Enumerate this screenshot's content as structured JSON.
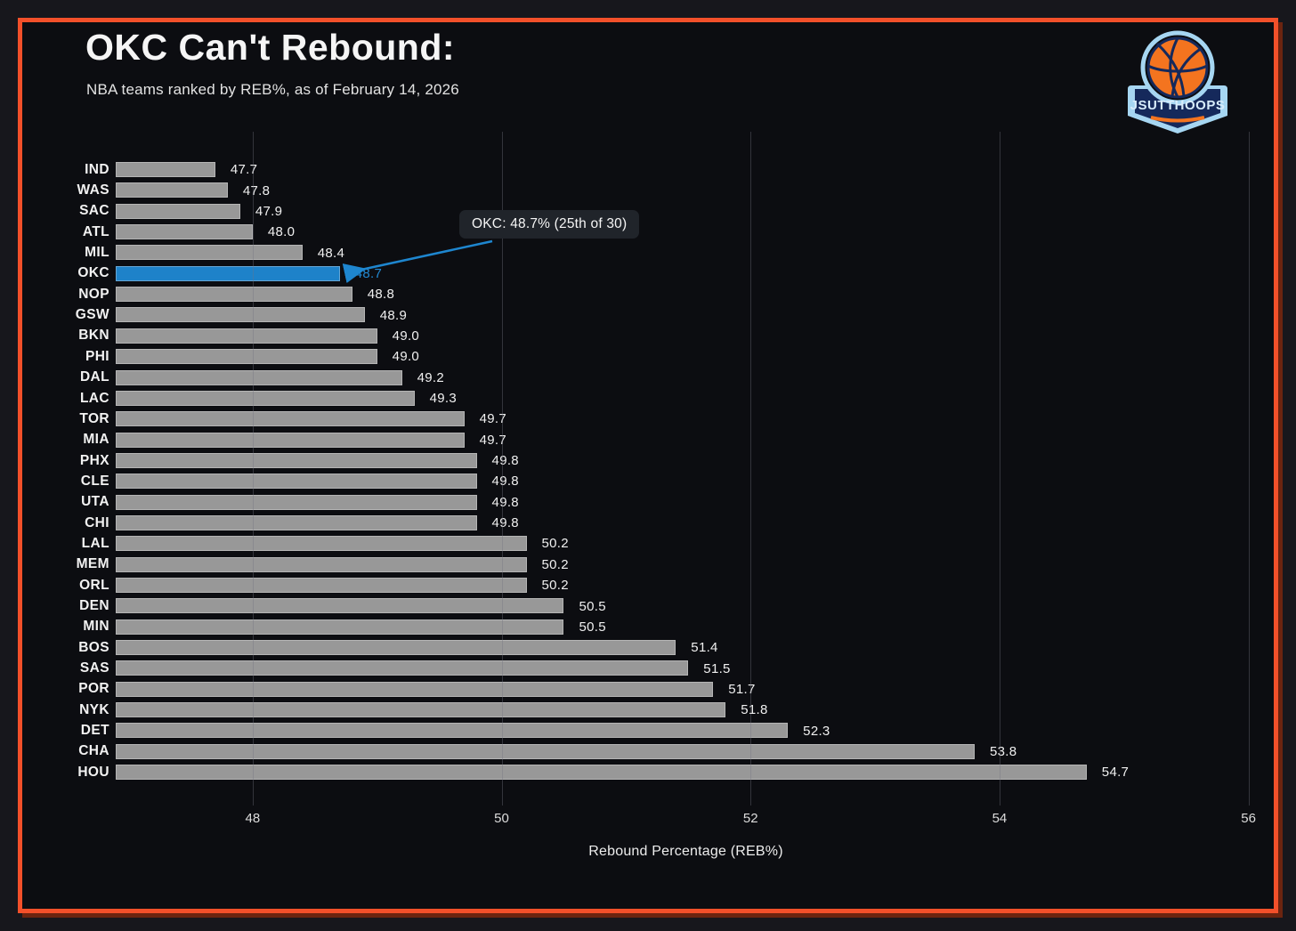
{
  "chart_data": {
    "type": "bar",
    "orientation": "horizontal",
    "title": "OKC Can't Rebound:",
    "subtitle": "NBA teams ranked by REB%, as of February 14, 2026",
    "xlabel": "Rebound Percentage (REB%)",
    "categories": [
      "IND",
      "WAS",
      "SAC",
      "ATL",
      "MIL",
      "OKC",
      "NOP",
      "GSW",
      "BKN",
      "PHI",
      "DAL",
      "LAC",
      "TOR",
      "MIA",
      "PHX",
      "CLE",
      "UTA",
      "CHI",
      "LAL",
      "MEM",
      "ORL",
      "DEN",
      "MIN",
      "BOS",
      "SAS",
      "POR",
      "NYK",
      "DET",
      "CHA",
      "HOU"
    ],
    "values": [
      47.7,
      47.8,
      47.9,
      48.0,
      48.4,
      48.7,
      48.8,
      48.9,
      49.0,
      49.0,
      49.2,
      49.3,
      49.7,
      49.7,
      49.8,
      49.8,
      49.8,
      49.8,
      50.2,
      50.2,
      50.2,
      50.5,
      50.5,
      51.4,
      51.5,
      51.7,
      51.8,
      52.3,
      53.8,
      54.7
    ],
    "highlight_team": "OKC",
    "annotation": "OKC: 48.7% (25th of 30)",
    "xticks": [
      48,
      50,
      52,
      54,
      56
    ],
    "xlim": [
      46.9,
      56.06
    ],
    "grid": true,
    "legend": false,
    "bar_color": "#989898",
    "highlight_color": "#1e82c9",
    "background_color": "#0c0d11",
    "frame_border_color": "#f3502a"
  },
  "logo": {
    "text": "JSUTTHOOPS"
  }
}
